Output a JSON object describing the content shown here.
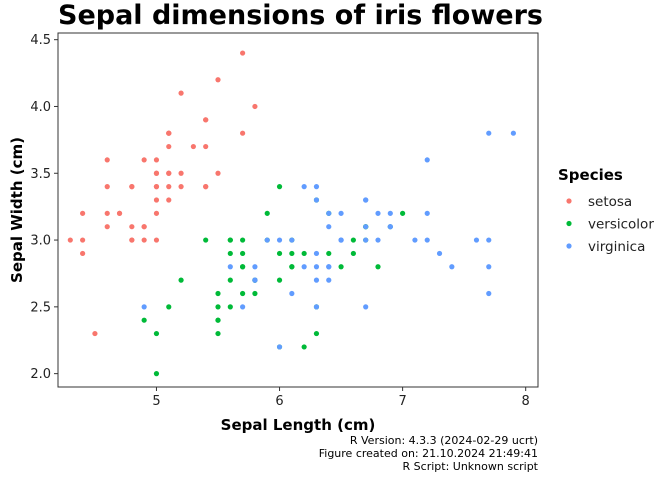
{
  "chart_data": {
    "type": "scatter",
    "title": "Sepal dimensions of iris flowers",
    "xlabel": "Sepal Length (cm)",
    "ylabel": "Sepal Width (cm)",
    "xlim": [
      4.2,
      8.1
    ],
    "ylim": [
      1.9,
      4.55
    ],
    "xticks": [
      5,
      6,
      7,
      8
    ],
    "yticks": [
      2.0,
      2.5,
      3.0,
      3.5,
      4.0,
      4.5
    ],
    "ytick_labels": [
      "2.0",
      "2.5",
      "3.0",
      "3.5",
      "4.0",
      "4.5"
    ],
    "grid": false,
    "legend": {
      "title": "Species",
      "position": "right"
    },
    "series": [
      {
        "name": "setosa",
        "color": "#F8766D",
        "points": [
          [
            5.1,
            3.5
          ],
          [
            4.9,
            3.0
          ],
          [
            4.7,
            3.2
          ],
          [
            4.6,
            3.1
          ],
          [
            5.0,
            3.6
          ],
          [
            5.4,
            3.9
          ],
          [
            4.6,
            3.4
          ],
          [
            5.0,
            3.4
          ],
          [
            4.4,
            2.9
          ],
          [
            4.9,
            3.1
          ],
          [
            5.4,
            3.7
          ],
          [
            4.8,
            3.4
          ],
          [
            4.8,
            3.0
          ],
          [
            4.3,
            3.0
          ],
          [
            5.8,
            4.0
          ],
          [
            5.7,
            4.4
          ],
          [
            5.4,
            3.9
          ],
          [
            5.1,
            3.5
          ],
          [
            5.7,
            3.8
          ],
          [
            5.1,
            3.8
          ],
          [
            5.4,
            3.4
          ],
          [
            5.1,
            3.7
          ],
          [
            4.6,
            3.6
          ],
          [
            5.1,
            3.3
          ],
          [
            4.8,
            3.4
          ],
          [
            5.0,
            3.0
          ],
          [
            5.0,
            3.4
          ],
          [
            5.2,
            3.5
          ],
          [
            5.2,
            3.4
          ],
          [
            4.7,
            3.2
          ],
          [
            4.8,
            3.1
          ],
          [
            5.4,
            3.4
          ],
          [
            5.2,
            4.1
          ],
          [
            5.5,
            4.2
          ],
          [
            4.9,
            3.1
          ],
          [
            5.0,
            3.2
          ],
          [
            5.5,
            3.5
          ],
          [
            4.9,
            3.6
          ],
          [
            4.4,
            3.0
          ],
          [
            5.1,
            3.4
          ],
          [
            5.0,
            3.5
          ],
          [
            4.5,
            2.3
          ],
          [
            4.4,
            3.2
          ],
          [
            5.0,
            3.5
          ],
          [
            5.1,
            3.8
          ],
          [
            4.8,
            3.0
          ],
          [
            5.1,
            3.8
          ],
          [
            4.6,
            3.2
          ],
          [
            5.3,
            3.7
          ],
          [
            5.0,
            3.3
          ]
        ]
      },
      {
        "name": "versicolor",
        "color": "#00BA38",
        "points": [
          [
            7.0,
            3.2
          ],
          [
            6.4,
            3.2
          ],
          [
            6.9,
            3.1
          ],
          [
            5.5,
            2.3
          ],
          [
            6.5,
            2.8
          ],
          [
            5.7,
            2.8
          ],
          [
            6.3,
            3.3
          ],
          [
            4.9,
            2.4
          ],
          [
            6.6,
            2.9
          ],
          [
            5.2,
            2.7
          ],
          [
            5.0,
            2.0
          ],
          [
            5.9,
            3.0
          ],
          [
            6.0,
            2.2
          ],
          [
            6.1,
            2.9
          ],
          [
            5.6,
            2.9
          ],
          [
            6.7,
            3.1
          ],
          [
            5.6,
            3.0
          ],
          [
            5.8,
            2.7
          ],
          [
            6.2,
            2.2
          ],
          [
            5.6,
            2.5
          ],
          [
            5.9,
            3.2
          ],
          [
            6.1,
            2.8
          ],
          [
            6.3,
            2.5
          ],
          [
            6.1,
            2.8
          ],
          [
            6.4,
            2.9
          ],
          [
            6.6,
            3.0
          ],
          [
            6.8,
            2.8
          ],
          [
            6.7,
            3.0
          ],
          [
            6.0,
            2.9
          ],
          [
            5.7,
            2.6
          ],
          [
            5.5,
            2.4
          ],
          [
            5.5,
            2.4
          ],
          [
            5.8,
            2.7
          ],
          [
            6.0,
            2.7
          ],
          [
            5.4,
            3.0
          ],
          [
            6.0,
            3.4
          ],
          [
            6.7,
            3.1
          ],
          [
            6.3,
            2.3
          ],
          [
            5.6,
            3.0
          ],
          [
            5.5,
            2.5
          ],
          [
            5.5,
            2.6
          ],
          [
            6.1,
            3.0
          ],
          [
            5.8,
            2.6
          ],
          [
            5.0,
            2.3
          ],
          [
            5.6,
            2.7
          ],
          [
            5.7,
            3.0
          ],
          [
            5.7,
            2.9
          ],
          [
            6.2,
            2.9
          ],
          [
            5.1,
            2.5
          ],
          [
            5.7,
            2.8
          ]
        ]
      },
      {
        "name": "virginica",
        "color": "#619CFF",
        "points": [
          [
            6.3,
            3.3
          ],
          [
            5.8,
            2.7
          ],
          [
            7.1,
            3.0
          ],
          [
            6.3,
            2.9
          ],
          [
            6.5,
            3.0
          ],
          [
            7.6,
            3.0
          ],
          [
            4.9,
            2.5
          ],
          [
            7.3,
            2.9
          ],
          [
            6.7,
            2.5
          ],
          [
            7.2,
            3.6
          ],
          [
            6.5,
            3.2
          ],
          [
            6.4,
            2.7
          ],
          [
            6.8,
            3.0
          ],
          [
            5.7,
            2.5
          ],
          [
            5.8,
            2.8
          ],
          [
            6.4,
            3.2
          ],
          [
            6.5,
            3.0
          ],
          [
            7.7,
            3.8
          ],
          [
            7.7,
            2.6
          ],
          [
            6.0,
            2.2
          ],
          [
            6.9,
            3.2
          ],
          [
            5.6,
            2.8
          ],
          [
            7.7,
            2.8
          ],
          [
            6.3,
            2.7
          ],
          [
            6.7,
            3.3
          ],
          [
            7.2,
            3.2
          ],
          [
            6.2,
            2.8
          ],
          [
            6.1,
            3.0
          ],
          [
            6.4,
            2.8
          ],
          [
            7.2,
            3.0
          ],
          [
            7.4,
            2.8
          ],
          [
            7.9,
            3.8
          ],
          [
            6.4,
            2.8
          ],
          [
            6.3,
            2.8
          ],
          [
            6.1,
            2.6
          ],
          [
            7.7,
            3.0
          ],
          [
            6.3,
            3.4
          ],
          [
            6.4,
            3.1
          ],
          [
            6.0,
            3.0
          ],
          [
            6.9,
            3.1
          ],
          [
            6.7,
            3.1
          ],
          [
            6.9,
            3.1
          ],
          [
            5.8,
            2.7
          ],
          [
            6.8,
            3.2
          ],
          [
            6.7,
            3.3
          ],
          [
            6.7,
            3.0
          ],
          [
            6.3,
            2.5
          ],
          [
            6.5,
            3.0
          ],
          [
            6.2,
            3.4
          ],
          [
            5.9,
            3.0
          ]
        ]
      }
    ],
    "caption": [
      "R Version: 4.3.3 (2024-02-29 ucrt)",
      "Figure created on: 21.10.2024 21:49:41",
      "R Script: Unknown script"
    ]
  }
}
